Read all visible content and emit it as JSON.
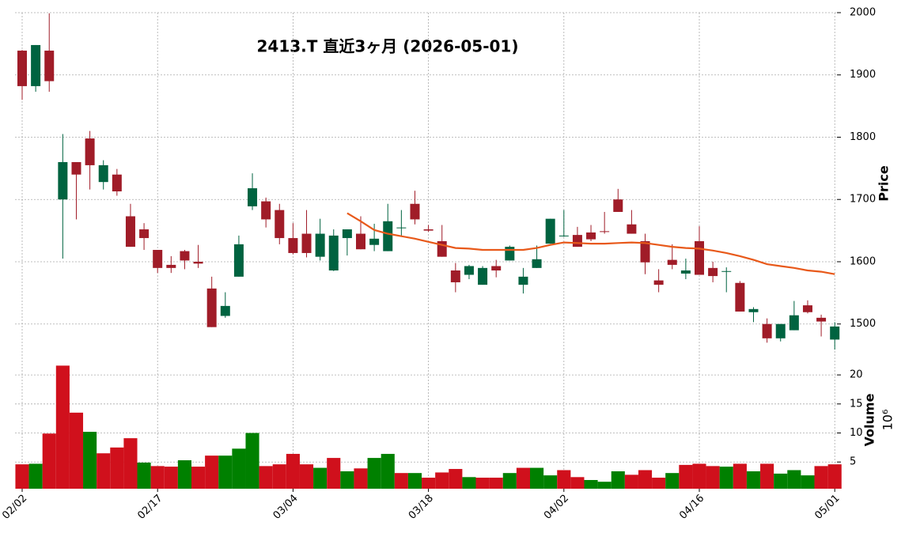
{
  "chart_data": {
    "type": "candlestick",
    "title": "2413.T  直近3ヶ月  (2026-05-01)",
    "ylabel": "Price",
    "categories": [
      "02/02",
      null,
      null,
      null,
      null,
      null,
      null,
      null,
      null,
      null,
      "02/17",
      null,
      null,
      null,
      null,
      null,
      null,
      null,
      null,
      null,
      "03/04",
      null,
      null,
      null,
      null,
      null,
      null,
      null,
      null,
      null,
      "03/18",
      null,
      null,
      null,
      null,
      null,
      null,
      null,
      null,
      null,
      "04/02",
      null,
      null,
      null,
      null,
      null,
      null,
      null,
      null,
      null,
      "04/16",
      null,
      null,
      null,
      null,
      null,
      null,
      null,
      null,
      null,
      "05/01"
    ],
    "open": [
      1939,
      1882,
      1939,
      1700,
      1760,
      1798,
      1728,
      1740,
      1673,
      1652,
      1619,
      1595,
      1617,
      1600,
      1557,
      1513,
      1576,
      1689,
      1697,
      1683,
      1638,
      1645,
      1608,
      1586,
      1638,
      1645,
      1627,
      1617,
      1654,
      1693,
      1652,
      1633,
      1586,
      1579,
      1563,
      1593,
      1602,
      1563,
      1590,
      1629,
      1641,
      1643,
      1647,
      1649,
      1700,
      1660,
      1633,
      1570,
      1603,
      1581,
      1633,
      1590,
      1584,
      1566,
      1519,
      1500,
      1477,
      1490,
      1530,
      1510,
      1475
    ],
    "high": [
      1940,
      1948,
      1999,
      1805,
      1760,
      1810,
      1763,
      1749,
      1693,
      1662,
      1619,
      1609,
      1619,
      1627,
      1576,
      1551,
      1642,
      1742,
      1703,
      1693,
      1662,
      1683,
      1669,
      1652,
      1652,
      1673,
      1661,
      1693,
      1683,
      1714,
      1659,
      1659,
      1598,
      1595,
      1593,
      1603,
      1626,
      1590,
      1626,
      1669,
      1683,
      1656,
      1659,
      1680,
      1717,
      1683,
      1645,
      1588,
      1628,
      1605,
      1657,
      1600,
      1591,
      1569,
      1527,
      1509,
      1500,
      1537,
      1538,
      1515,
      1503
    ],
    "low": [
      1860,
      1873,
      1873,
      1605,
      1668,
      1716,
      1716,
      1706,
      1624,
      1619,
      1582,
      1582,
      1588,
      1590,
      1495,
      1510,
      1576,
      1683,
      1655,
      1628,
      1612,
      1607,
      1602,
      1585,
      1610,
      1620,
      1617,
      1617,
      1640,
      1660,
      1648,
      1608,
      1551,
      1572,
      1563,
      1575,
      1602,
      1549,
      1590,
      1629,
      1640,
      1624,
      1633,
      1645,
      1680,
      1645,
      1580,
      1551,
      1588,
      1572,
      1579,
      1567,
      1551,
      1520,
      1503,
      1470,
      1472,
      1490,
      1517,
      1480,
      1459
    ],
    "close": [
      1882,
      1948,
      1890,
      1760,
      1740,
      1755,
      1755,
      1713,
      1624,
      1638,
      1590,
      1590,
      1602,
      1597,
      1495,
      1529,
      1628,
      1718,
      1668,
      1638,
      1614,
      1614,
      1645,
      1642,
      1652,
      1620,
      1637,
      1665,
      1655,
      1668,
      1650,
      1608,
      1567,
      1593,
      1590,
      1586,
      1624,
      1576,
      1604,
      1669,
      1642,
      1624,
      1636,
      1648,
      1680,
      1645,
      1599,
      1563,
      1595,
      1586,
      1579,
      1577,
      1585,
      1520,
      1524,
      1477,
      1500,
      1514,
      1519,
      1504,
      1496
    ],
    "up_color": "#006340",
    "down_color": "#a01c28",
    "ma": {
      "color": "#e8591a",
      "values": [
        null,
        null,
        null,
        null,
        null,
        null,
        null,
        null,
        null,
        null,
        null,
        null,
        null,
        null,
        null,
        null,
        null,
        null,
        null,
        null,
        null,
        null,
        null,
        null,
        1678,
        1665,
        1651,
        1645,
        1641,
        1637,
        1632,
        1627,
        1622,
        1621,
        1619,
        1619,
        1619,
        1619,
        1622,
        1627,
        1631,
        1630,
        1629,
        1629,
        1630,
        1631,
        1630,
        1627,
        1624,
        1622,
        1621,
        1618,
        1614,
        1609,
        1603,
        1596,
        1593,
        1590,
        1586,
        1584,
        1580
      ]
    },
    "ylim": [
      1459,
      2000
    ],
    "yticks": [
      1500,
      1600,
      1700,
      1800,
      1900,
      2000
    ],
    "grid": true,
    "volume": {
      "label": "Volume",
      "scale_label": "10⁶",
      "values": [
        4.6,
        4.7,
        9.9,
        21.6,
        13.5,
        10.2,
        6.5,
        7.5,
        9.1,
        4.9,
        4.3,
        4.2,
        5.3,
        4.2,
        6.1,
        6.1,
        7.3,
        10.0,
        4.3,
        4.6,
        6.4,
        4.6,
        4.0,
        5.7,
        3.4,
        3.9,
        5.7,
        6.4,
        3.1,
        3.1,
        2.3,
        3.2,
        3.8,
        2.4,
        2.3,
        2.3,
        3.1,
        4.0,
        4.0,
        2.7,
        3.6,
        2.4,
        1.9,
        1.6,
        3.4,
        2.8,
        3.6,
        2.3,
        3.1,
        4.5,
        4.7,
        4.3,
        4.2,
        4.7,
        3.4,
        4.7,
        3.0,
        3.6,
        2.7,
        4.3,
        4.6
      ],
      "colors": [
        "#d0101c",
        "#008000",
        "#d0101c",
        "#d0101c",
        "#d0101c",
        "#008000",
        "#d0101c",
        "#d0101c",
        "#d0101c",
        "#008000",
        "#d0101c",
        "#d0101c",
        "#008000",
        "#d0101c",
        "#d0101c",
        "#008000",
        "#008000",
        "#008000",
        "#d0101c",
        "#d0101c",
        "#d0101c",
        "#d0101c",
        "#008000",
        "#d0101c",
        "#008000",
        "#d0101c",
        "#008000",
        "#008000",
        "#d0101c",
        "#008000",
        "#d0101c",
        "#d0101c",
        "#d0101c",
        "#008000",
        "#d0101c",
        "#d0101c",
        "#008000",
        "#d0101c",
        "#008000",
        "#008000",
        "#d0101c",
        "#d0101c",
        "#008000",
        "#008000",
        "#008000",
        "#d0101c",
        "#d0101c",
        "#d0101c",
        "#008000",
        "#d0101c",
        "#d0101c",
        "#d0101c",
        "#008000",
        "#d0101c",
        "#008000",
        "#d0101c",
        "#008000",
        "#008000",
        "#008000",
        "#d0101c",
        "#d0101c"
      ],
      "ylim": [
        0.4,
        24.1
      ],
      "yticks": [
        5,
        10,
        15,
        20
      ]
    }
  }
}
